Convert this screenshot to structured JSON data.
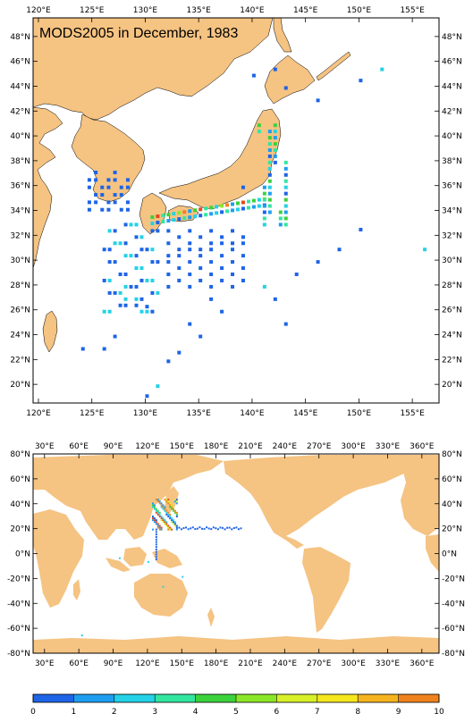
{
  "title": "MODS2005 in December, 1983",
  "regional_map": {
    "x_ticks": [
      "120°E",
      "125°E",
      "130°E",
      "135°E",
      "140°E",
      "145°E",
      "150°E",
      "155°E"
    ],
    "y_ticks": [
      "48°N",
      "46°N",
      "44°N",
      "42°N",
      "40°N",
      "38°N",
      "36°N",
      "34°N",
      "32°N",
      "30°N",
      "28°N",
      "26°N",
      "24°N",
      "22°N",
      "20°N"
    ],
    "lon_range": [
      119.5,
      157.5
    ],
    "lat_range": [
      18.5,
      49.5
    ]
  },
  "global_map": {
    "x_ticks": [
      "30°E",
      "60°E",
      "90°E",
      "120°E",
      "150°E",
      "180°E",
      "210°E",
      "240°E",
      "270°E",
      "300°E",
      "330°E",
      "360°E"
    ],
    "y_ticks": [
      "80°N",
      "60°N",
      "40°N",
      "20°N",
      "0°N",
      "-20°N",
      "-40°N",
      "-60°N",
      "-80°N"
    ],
    "lon_range": [
      20,
      375
    ],
    "lat_range": [
      -80,
      80
    ]
  },
  "colorbar": {
    "labels": [
      "0",
      "1",
      "2",
      "3",
      "4",
      "5",
      "6",
      "7",
      "8",
      "9",
      "10"
    ],
    "colors": [
      "#1e64e6",
      "#1e9ef0",
      "#23d2e6",
      "#32e6a0",
      "#3cd23c",
      "#8ce628",
      "#d7f028",
      "#f5e61e",
      "#f5b41e",
      "#f0821e",
      "#e6461e"
    ]
  },
  "colors": {
    "land": "#f5c382",
    "ocean": "#ffffff"
  }
}
